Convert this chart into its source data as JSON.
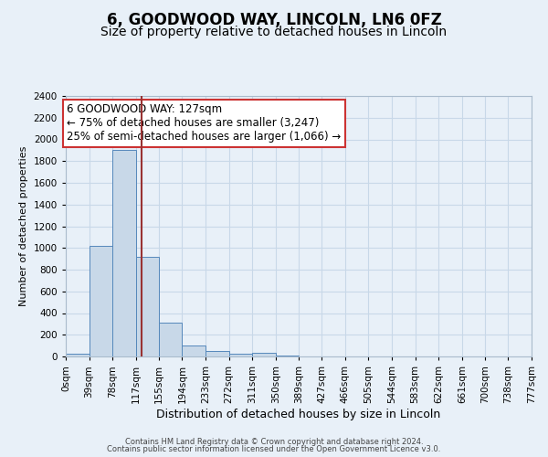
{
  "title": "6, GOODWOOD WAY, LINCOLN, LN6 0FZ",
  "subtitle": "Size of property relative to detached houses in Lincoln",
  "xlabel": "Distribution of detached houses by size in Lincoln",
  "ylabel": "Number of detached properties",
  "bin_edges": [
    0,
    39,
    78,
    117,
    155,
    194,
    233,
    272,
    311,
    350,
    389,
    427,
    466,
    505,
    544,
    583,
    622,
    661,
    700,
    738,
    777
  ],
  "bin_labels": [
    "0sqm",
    "39sqm",
    "78sqm",
    "117sqm",
    "155sqm",
    "194sqm",
    "233sqm",
    "272sqm",
    "311sqm",
    "350sqm",
    "389sqm",
    "427sqm",
    "466sqm",
    "505sqm",
    "544sqm",
    "583sqm",
    "622sqm",
    "661sqm",
    "700sqm",
    "738sqm",
    "777sqm"
  ],
  "bar_heights": [
    25,
    1020,
    1900,
    920,
    315,
    105,
    50,
    25,
    30,
    10,
    0,
    0,
    0,
    0,
    0,
    0,
    0,
    0,
    0,
    0
  ],
  "bar_color": "#c8d8e8",
  "bar_edge_color": "#5588bb",
  "vline_x": 127,
  "vline_color": "#993333",
  "annotation_line1": "6 GOODWOOD WAY: 127sqm",
  "annotation_line2": "← 75% of detached houses are smaller (3,247)",
  "annotation_line3": "25% of semi-detached houses are larger (1,066) →",
  "annotation_box_color": "#cc3333",
  "ylim": [
    0,
    2400
  ],
  "yticks": [
    0,
    200,
    400,
    600,
    800,
    1000,
    1200,
    1400,
    1600,
    1800,
    2000,
    2200,
    2400
  ],
  "grid_color": "#c8d8e8",
  "background_color": "#e8f0f8",
  "footer_line1": "Contains HM Land Registry data © Crown copyright and database right 2024.",
  "footer_line2": "Contains public sector information licensed under the Open Government Licence v3.0.",
  "title_fontsize": 12,
  "subtitle_fontsize": 10,
  "xlabel_fontsize": 9,
  "ylabel_fontsize": 8,
  "tick_fontsize": 7.5,
  "annotation_fontsize": 8.5,
  "footer_fontsize": 6
}
